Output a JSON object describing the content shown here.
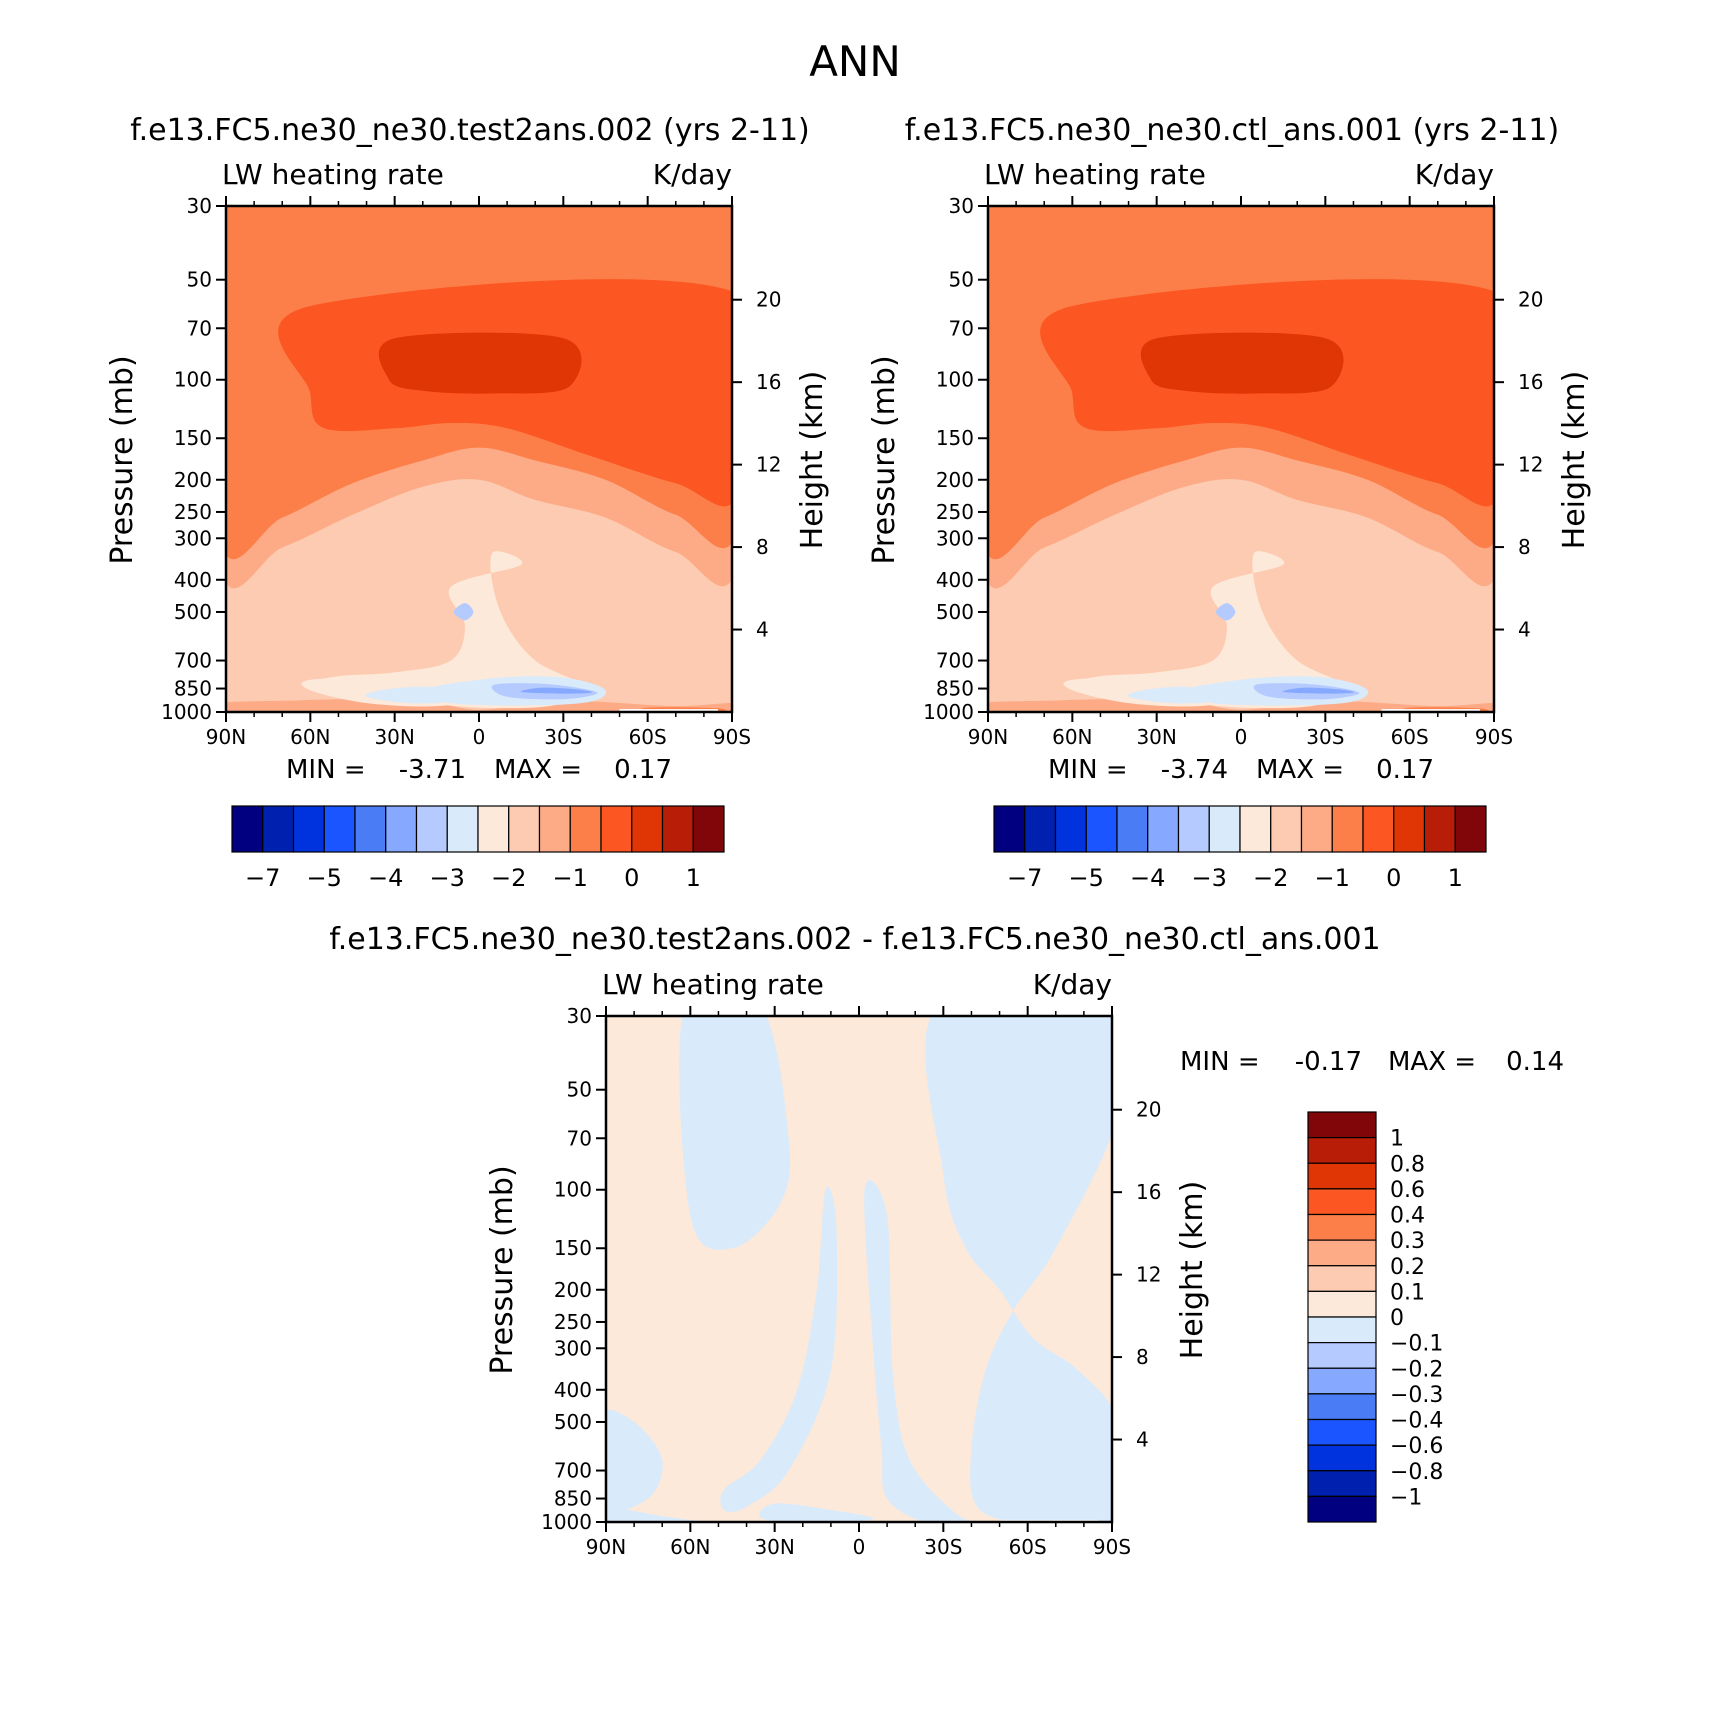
{
  "figure": {
    "title": "ANN"
  },
  "colors": {
    "test_ctl_levels": [
      "#000080",
      "#0020b0",
      "#0033dd",
      "#1a55ff",
      "#4a7cf5",
      "#86a8ff",
      "#b5cbff",
      "#d9eafb",
      "#fde9d9",
      "#fdcbb1",
      "#fcab86",
      "#fc7f4a",
      "#fc5722",
      "#e03606",
      "#b81d08",
      "#80060a"
    ],
    "diff_levels": [
      "#000080",
      "#0020b0",
      "#0033dd",
      "#1a55ff",
      "#4a7cf5",
      "#86a8ff",
      "#b5cbff",
      "#d9eafb",
      "#fde9d9",
      "#fdcbb1",
      "#fcab86",
      "#fc7f4a",
      "#fc5722",
      "#e03606",
      "#b81d08",
      "#80060a"
    ]
  },
  "chart_data": [
    {
      "type": "heatmap",
      "title": "f.e13.FC5.ne30_ne30.test2ans.002 (yrs 2-11)",
      "left_string": "LW heating rate",
      "right_string": "K/day",
      "xlabel": "",
      "ylabel": "Pressure (mb)",
      "y2label": "Height (km)",
      "x_ticks": [
        "90N",
        "60N",
        "30N",
        "0",
        "30S",
        "60S",
        "90S"
      ],
      "y_ticks": [
        "30",
        "50",
        "70",
        "100",
        "150",
        "200",
        "250",
        "300",
        "400",
        "500",
        "700",
        "850",
        "1000"
      ],
      "y2_ticks": [
        "20",
        "16",
        "12",
        "8",
        "4"
      ],
      "ylim": [
        1000,
        30
      ],
      "log_y": true,
      "stats": {
        "min_label": "MIN =",
        "min": "-3.71",
        "max_label": "MAX =",
        "max": "0.17"
      },
      "colorbar_labels": [
        "-7",
        "-5",
        "-4",
        "-3",
        "-2",
        "-1",
        "0",
        "1"
      ]
    },
    {
      "type": "heatmap",
      "title": "f.e13.FC5.ne30_ne30.ctl_ans.001 (yrs 2-11)",
      "left_string": "LW heating rate",
      "right_string": "K/day",
      "xlabel": "",
      "ylabel": "Pressure (mb)",
      "y2label": "Height (km)",
      "x_ticks": [
        "90N",
        "60N",
        "30N",
        "0",
        "30S",
        "60S",
        "90S"
      ],
      "y_ticks": [
        "30",
        "50",
        "70",
        "100",
        "150",
        "200",
        "250",
        "300",
        "400",
        "500",
        "700",
        "850",
        "1000"
      ],
      "y2_ticks": [
        "20",
        "16",
        "12",
        "8",
        "4"
      ],
      "ylim": [
        1000,
        30
      ],
      "log_y": true,
      "stats": {
        "min_label": "MIN =",
        "min": "-3.74",
        "max_label": "MAX =",
        "max": "0.17"
      },
      "colorbar_labels": [
        "-7",
        "-5",
        "-4",
        "-3",
        "-2",
        "-1",
        "0",
        "1"
      ]
    },
    {
      "type": "heatmap",
      "title": "f.e13.FC5.ne30_ne30.test2ans.002 - f.e13.FC5.ne30_ne30.ctl_ans.001",
      "left_string": "LW heating rate",
      "right_string": "K/day",
      "xlabel": "",
      "ylabel": "Pressure (mb)",
      "y2label": "Height (km)",
      "x_ticks": [
        "90N",
        "60N",
        "30N",
        "0",
        "30S",
        "60S",
        "90S"
      ],
      "y_ticks": [
        "30",
        "50",
        "70",
        "100",
        "150",
        "200",
        "250",
        "300",
        "400",
        "500",
        "700",
        "850",
        "1000"
      ],
      "y2_ticks": [
        "20",
        "16",
        "12",
        "8",
        "4"
      ],
      "ylim": [
        1000,
        30
      ],
      "log_y": true,
      "stats": {
        "min_label": "MIN =",
        "min": "-0.17",
        "max_label": "MAX =",
        "max": "0.14"
      },
      "colorbar_labels": [
        "1",
        "0.8",
        "0.6",
        "0.4",
        "0.3",
        "0.2",
        "0.1",
        "0",
        "-0.1",
        "-0.2",
        "-0.3",
        "-0.4",
        "-0.6",
        "-0.8",
        "-1"
      ]
    }
  ]
}
